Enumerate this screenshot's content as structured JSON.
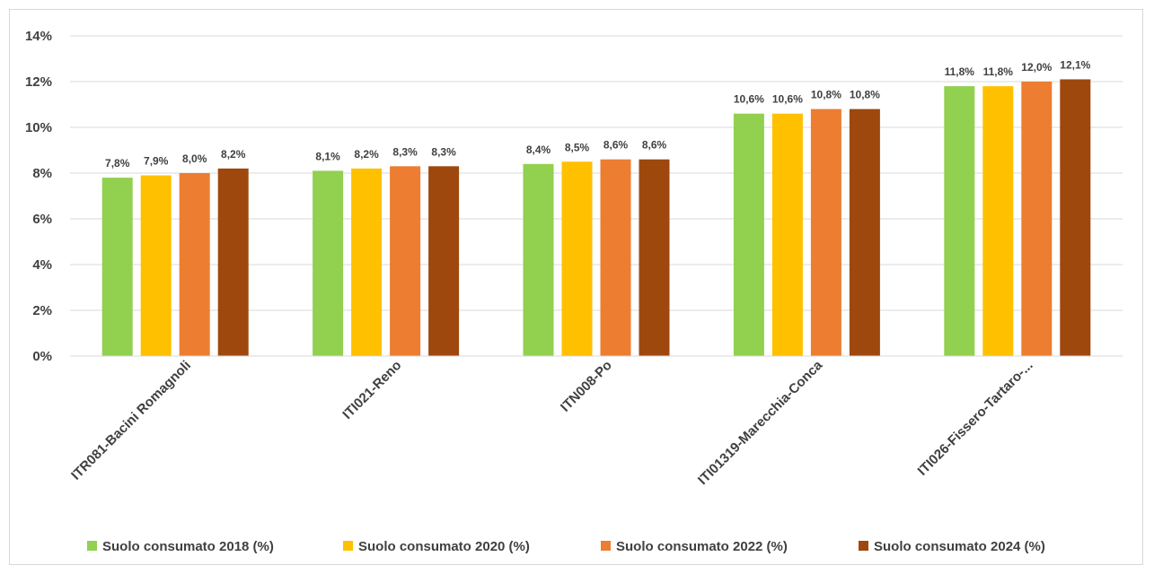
{
  "chart_data": {
    "type": "bar",
    "title": "",
    "xlabel": "",
    "ylabel": "",
    "ylim": [
      0,
      14
    ],
    "y_ticks": [
      "0%",
      "2%",
      "4%",
      "6%",
      "8%",
      "10%",
      "12%",
      "14%"
    ],
    "y_tick_values": [
      0,
      2,
      4,
      6,
      8,
      10,
      12,
      14
    ],
    "grid": true,
    "legend_position": "bottom",
    "categories": [
      "ITR081-Bacini Romagnoli",
      "ITI021-Reno",
      "ITN008-Po",
      "ITI01319-Marecchia-Conca",
      "ITI026-Fissero-Tartaro-..."
    ],
    "series": [
      {
        "name": "Suolo consumato 2018 (%)",
        "color": "#92d050",
        "values": [
          7.8,
          8.1,
          8.4,
          10.6,
          11.8
        ],
        "labels": [
          "7,8%",
          "8,1%",
          "8,4%",
          "10,6%",
          "11,8%"
        ]
      },
      {
        "name": "Suolo consumato 2020 (%)",
        "color": "#ffc000",
        "values": [
          7.9,
          8.2,
          8.5,
          10.6,
          11.8
        ],
        "labels": [
          "7,9%",
          "8,2%",
          "8,5%",
          "10,6%",
          "11,8%"
        ]
      },
      {
        "name": "Suolo consumato 2022 (%)",
        "color": "#ed7d31",
        "values": [
          8.0,
          8.3,
          8.6,
          10.8,
          12.0
        ],
        "labels": [
          "8,0%",
          "8,3%",
          "8,6%",
          "10,8%",
          "12,0%"
        ]
      },
      {
        "name": "Suolo consumato 2024 (%)",
        "color": "#9e480e",
        "values": [
          8.2,
          8.3,
          8.6,
          10.8,
          12.1
        ],
        "labels": [
          "8,2%",
          "8,3%",
          "8,6%",
          "10,8%",
          "12,1%"
        ]
      }
    ]
  }
}
